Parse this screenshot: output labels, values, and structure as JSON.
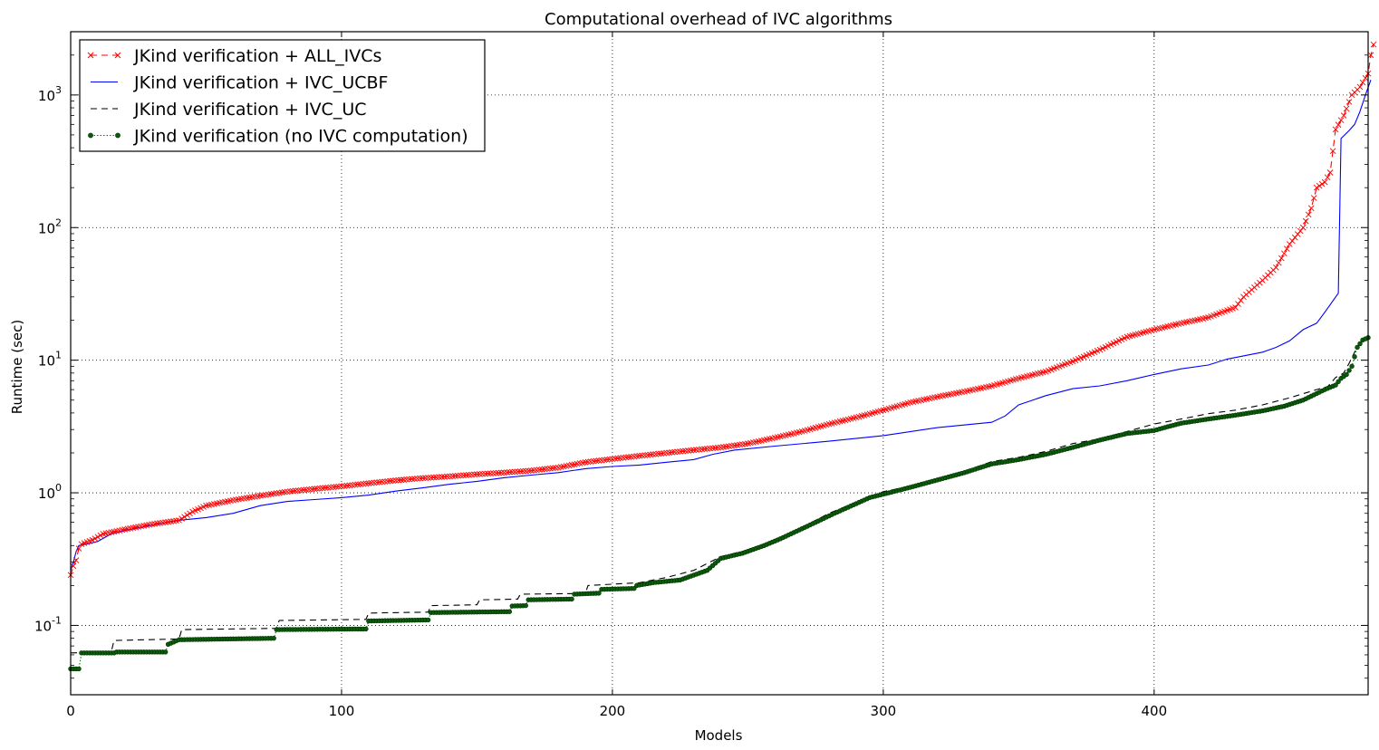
{
  "chart_data": {
    "type": "line",
    "title": "Computational overhead of IVC algorithms",
    "xlabel": "Models",
    "ylabel": "Runtime (sec)",
    "xlim": [
      0,
      479
    ],
    "ylim": [
      0.03,
      3000
    ],
    "yscale": "log",
    "grid": true,
    "legend_position": "top-left",
    "x_ticks": [
      0,
      100,
      200,
      300,
      400
    ],
    "y_ticks": [
      {
        "value": 0.1,
        "base": "10",
        "exp": "-1"
      },
      {
        "value": 1,
        "base": "10",
        "exp": "0"
      },
      {
        "value": 10,
        "base": "10",
        "exp": "1"
      },
      {
        "value": 100,
        "base": "10",
        "exp": "2"
      },
      {
        "value": 1000,
        "base": "10",
        "exp": "3"
      }
    ],
    "series": [
      {
        "name": "JKind verification + ALL_IVCs",
        "color": "#ff0000",
        "style": "dashed-x",
        "points": [
          [
            0,
            0.24
          ],
          [
            1,
            0.28
          ],
          [
            2,
            0.31
          ],
          [
            3,
            0.38
          ],
          [
            4,
            0.41
          ],
          [
            8,
            0.44
          ],
          [
            12,
            0.49
          ],
          [
            20,
            0.53
          ],
          [
            30,
            0.58
          ],
          [
            40,
            0.62
          ],
          [
            45,
            0.72
          ],
          [
            50,
            0.8
          ],
          [
            60,
            0.88
          ],
          [
            70,
            0.95
          ],
          [
            80,
            1.02
          ],
          [
            90,
            1.07
          ],
          [
            100,
            1.12
          ],
          [
            110,
            1.18
          ],
          [
            120,
            1.24
          ],
          [
            130,
            1.29
          ],
          [
            140,
            1.33
          ],
          [
            150,
            1.38
          ],
          [
            160,
            1.42
          ],
          [
            170,
            1.47
          ],
          [
            180,
            1.55
          ],
          [
            190,
            1.7
          ],
          [
            200,
            1.8
          ],
          [
            210,
            1.9
          ],
          [
            220,
            2.0
          ],
          [
            230,
            2.1
          ],
          [
            240,
            2.2
          ],
          [
            250,
            2.35
          ],
          [
            260,
            2.6
          ],
          [
            270,
            2.9
          ],
          [
            280,
            3.3
          ],
          [
            290,
            3.7
          ],
          [
            300,
            4.2
          ],
          [
            310,
            4.8
          ],
          [
            320,
            5.3
          ],
          [
            330,
            5.8
          ],
          [
            340,
            6.4
          ],
          [
            350,
            7.3
          ],
          [
            360,
            8.2
          ],
          [
            370,
            9.8
          ],
          [
            380,
            12
          ],
          [
            390,
            15
          ],
          [
            400,
            17
          ],
          [
            410,
            19
          ],
          [
            420,
            21
          ],
          [
            425,
            23
          ],
          [
            430,
            25
          ],
          [
            433,
            30
          ],
          [
            440,
            40
          ],
          [
            445,
            50
          ],
          [
            450,
            75
          ],
          [
            455,
            100
          ],
          [
            458,
            140
          ],
          [
            460,
            200
          ],
          [
            463,
            220
          ],
          [
            465,
            260
          ],
          [
            467,
            550
          ],
          [
            470,
            700
          ],
          [
            473,
            1000
          ],
          [
            476,
            1150
          ],
          [
            479,
            1450
          ],
          [
            480,
            2000
          ],
          [
            481,
            2400
          ]
        ]
      },
      {
        "name": "JKind verification + IVC_UCBF",
        "color": "#0000ff",
        "style": "solid",
        "points": [
          [
            0,
            0.26
          ],
          [
            1,
            0.3
          ],
          [
            2,
            0.36
          ],
          [
            3,
            0.4
          ],
          [
            6,
            0.41
          ],
          [
            10,
            0.43
          ],
          [
            15,
            0.49
          ],
          [
            20,
            0.52
          ],
          [
            30,
            0.57
          ],
          [
            40,
            0.62
          ],
          [
            50,
            0.65
          ],
          [
            60,
            0.7
          ],
          [
            70,
            0.8
          ],
          [
            80,
            0.86
          ],
          [
            90,
            0.89
          ],
          [
            100,
            0.92
          ],
          [
            110,
            0.96
          ],
          [
            120,
            1.03
          ],
          [
            130,
            1.09
          ],
          [
            140,
            1.16
          ],
          [
            150,
            1.22
          ],
          [
            160,
            1.3
          ],
          [
            170,
            1.36
          ],
          [
            180,
            1.42
          ],
          [
            190,
            1.52
          ],
          [
            200,
            1.58
          ],
          [
            210,
            1.62
          ],
          [
            220,
            1.7
          ],
          [
            230,
            1.78
          ],
          [
            237,
            1.95
          ],
          [
            245,
            2.1
          ],
          [
            260,
            2.25
          ],
          [
            280,
            2.45
          ],
          [
            300,
            2.7
          ],
          [
            320,
            3.1
          ],
          [
            340,
            3.4
          ],
          [
            345,
            3.8
          ],
          [
            350,
            4.6
          ],
          [
            360,
            5.4
          ],
          [
            370,
            6.1
          ],
          [
            380,
            6.4
          ],
          [
            390,
            7.0
          ],
          [
            400,
            7.8
          ],
          [
            410,
            8.6
          ],
          [
            420,
            9.2
          ],
          [
            427,
            10.2
          ],
          [
            440,
            11.5
          ],
          [
            445,
            12.5
          ],
          [
            450,
            14
          ],
          [
            455,
            17
          ],
          [
            460,
            19
          ],
          [
            463,
            23
          ],
          [
            466,
            28
          ],
          [
            468,
            32
          ],
          [
            469,
            470
          ],
          [
            472,
            540
          ],
          [
            474,
            600
          ],
          [
            476,
            750
          ],
          [
            478,
            1000
          ],
          [
            480,
            1300
          ]
        ]
      },
      {
        "name": "JKind verification + IVC_UC",
        "color": "#000000",
        "style": "dashed",
        "points": [
          [
            0,
            0.062
          ],
          [
            15,
            0.063
          ],
          [
            16,
            0.077
          ],
          [
            40,
            0.079
          ],
          [
            41,
            0.093
          ],
          [
            76,
            0.095
          ],
          [
            77,
            0.109
          ],
          [
            109,
            0.111
          ],
          [
            110,
            0.124
          ],
          [
            132,
            0.126
          ],
          [
            133,
            0.141
          ],
          [
            150,
            0.143
          ],
          [
            151,
            0.156
          ],
          [
            165,
            0.158
          ],
          [
            166,
            0.172
          ],
          [
            190,
            0.174
          ],
          [
            191,
            0.2
          ],
          [
            210,
            0.21
          ],
          [
            220,
            0.23
          ],
          [
            230,
            0.26
          ],
          [
            240,
            0.33
          ],
          [
            250,
            0.37
          ],
          [
            260,
            0.44
          ],
          [
            270,
            0.55
          ],
          [
            280,
            0.7
          ],
          [
            290,
            0.85
          ],
          [
            300,
            1.02
          ],
          [
            310,
            1.12
          ],
          [
            320,
            1.28
          ],
          [
            330,
            1.45
          ],
          [
            340,
            1.72
          ],
          [
            350,
            1.85
          ],
          [
            360,
            2.05
          ],
          [
            370,
            2.35
          ],
          [
            380,
            2.55
          ],
          [
            390,
            2.9
          ],
          [
            400,
            3.3
          ],
          [
            410,
            3.6
          ],
          [
            420,
            3.95
          ],
          [
            430,
            4.2
          ],
          [
            440,
            4.6
          ],
          [
            450,
            5.2
          ],
          [
            460,
            6.0
          ],
          [
            464,
            6.3
          ],
          [
            467,
            7.4
          ],
          [
            470,
            8.0
          ],
          [
            472,
            9.5
          ],
          [
            474,
            11.5
          ],
          [
            476,
            13.5
          ],
          [
            478,
            14.5
          ]
        ]
      },
      {
        "name": "JKind verification (no IVC computation)",
        "color": "#008000",
        "style": "dotted-o",
        "points": [
          [
            0,
            0.047
          ],
          [
            3,
            0.047
          ],
          [
            4,
            0.062
          ],
          [
            16,
            0.062
          ],
          [
            17,
            0.063
          ],
          [
            35,
            0.063
          ],
          [
            36,
            0.072
          ],
          [
            40,
            0.078
          ],
          [
            75,
            0.08
          ],
          [
            76,
            0.093
          ],
          [
            109,
            0.094
          ],
          [
            110,
            0.108
          ],
          [
            132,
            0.11
          ],
          [
            133,
            0.125
          ],
          [
            162,
            0.127
          ],
          [
            163,
            0.14
          ],
          [
            168,
            0.141
          ],
          [
            169,
            0.156
          ],
          [
            185,
            0.158
          ],
          [
            186,
            0.172
          ],
          [
            195,
            0.175
          ],
          [
            196,
            0.187
          ],
          [
            208,
            0.19
          ],
          [
            209,
            0.2
          ],
          [
            215,
            0.21
          ],
          [
            225,
            0.22
          ],
          [
            235,
            0.26
          ],
          [
            240,
            0.32
          ],
          [
            248,
            0.35
          ],
          [
            256,
            0.4
          ],
          [
            262,
            0.45
          ],
          [
            272,
            0.56
          ],
          [
            282,
            0.7
          ],
          [
            295,
            0.92
          ],
          [
            302,
            1.0
          ],
          [
            310,
            1.1
          ],
          [
            320,
            1.25
          ],
          [
            330,
            1.42
          ],
          [
            340,
            1.65
          ],
          [
            350,
            1.78
          ],
          [
            360,
            1.95
          ],
          [
            370,
            2.2
          ],
          [
            380,
            2.5
          ],
          [
            390,
            2.8
          ],
          [
            400,
            2.95
          ],
          [
            405,
            3.15
          ],
          [
            410,
            3.35
          ],
          [
            420,
            3.6
          ],
          [
            430,
            3.85
          ],
          [
            440,
            4.15
          ],
          [
            448,
            4.5
          ],
          [
            455,
            5.0
          ],
          [
            463,
            6.0
          ],
          [
            467,
            6.5
          ],
          [
            469,
            7.3
          ],
          [
            471,
            7.8
          ],
          [
            473,
            9.0
          ],
          [
            475,
            12.5
          ],
          [
            477,
            14.2
          ],
          [
            479,
            14.8
          ]
        ]
      }
    ]
  }
}
